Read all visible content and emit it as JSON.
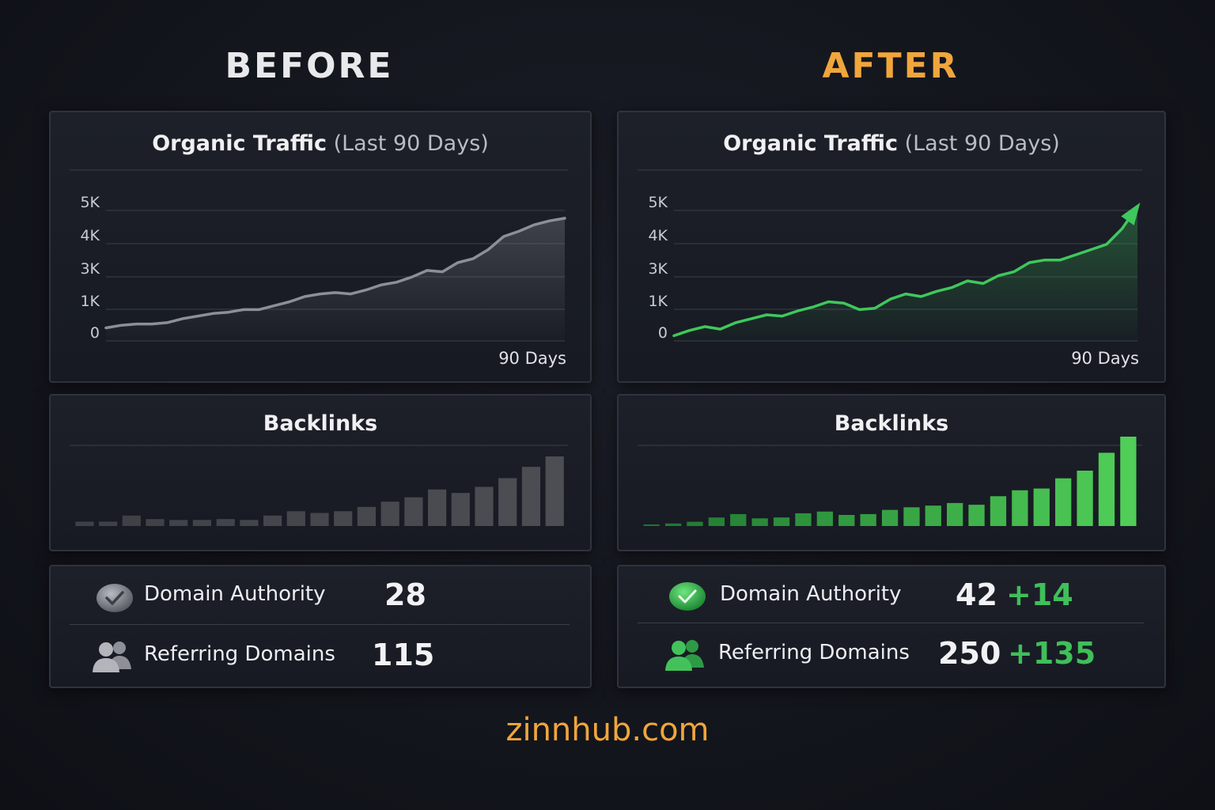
{
  "headings": {
    "before": "BEFORE",
    "after": "AFTER"
  },
  "footer": "zinnhub.com",
  "colors": {
    "before_line": "#8d8f96",
    "after_line": "#3fc85c",
    "accent": "#f0a63c",
    "delta": "#3fbf5a"
  },
  "before": {
    "traffic_title": "Organic Traffic",
    "traffic_sub": "(Last 90 Days)",
    "x_label": "90 Days",
    "backlinks_title": "Backlinks",
    "stats": {
      "da_label": "Domain Authority",
      "da_value": "28",
      "rd_label": "Referring Domains",
      "rd_value": "115"
    },
    "icons": {
      "da": "check-circle-icon",
      "rd": "users-icon"
    }
  },
  "after": {
    "traffic_title": "Organic Traffic",
    "traffic_sub": "(Last 90 Days)",
    "x_label": "90 Days",
    "backlinks_title": "Backlinks",
    "stats": {
      "da_label": "Domain Authority",
      "da_value": "42",
      "da_delta": "+14",
      "rd_label": "Referring Domains",
      "rd_value": "250",
      "rd_delta": "+135"
    },
    "icons": {
      "da": "check-circle-icon",
      "rd": "users-icon"
    }
  },
  "chart_data": [
    {
      "type": "line",
      "panel": "before",
      "title": "Organic Traffic (Last 90 Days)",
      "xlabel": "90 Days",
      "y_ticks": [
        "0",
        "1K",
        "3K",
        "4K",
        "5K"
      ],
      "ylim": [
        0,
        5000
      ],
      "grid": true,
      "x": [
        0,
        3,
        6,
        9,
        12,
        15,
        18,
        21,
        24,
        27,
        30,
        33,
        36,
        39,
        42,
        45,
        48,
        51,
        54,
        57,
        60,
        63,
        66,
        69,
        72,
        75,
        78,
        81,
        84,
        87,
        90
      ],
      "values": [
        500,
        600,
        650,
        650,
        700,
        850,
        950,
        1050,
        1100,
        1200,
        1200,
        1350,
        1500,
        1700,
        1800,
        1850,
        1800,
        1950,
        2150,
        2250,
        2450,
        2700,
        2650,
        3000,
        3150,
        3500,
        4000,
        4200,
        4450,
        4600,
        4700
      ]
    },
    {
      "type": "line",
      "panel": "after",
      "title": "Organic Traffic (Last 90 Days)",
      "xlabel": "90 Days",
      "y_ticks": [
        "0",
        "1K",
        "3K",
        "4K",
        "5K"
      ],
      "ylim": [
        0,
        5000
      ],
      "grid": true,
      "x": [
        0,
        3,
        6,
        9,
        12,
        15,
        18,
        21,
        24,
        27,
        30,
        33,
        36,
        39,
        42,
        45,
        48,
        51,
        54,
        57,
        60,
        63,
        66,
        69,
        72,
        75,
        78,
        81,
        84,
        87,
        90
      ],
      "values": [
        200,
        400,
        550,
        450,
        700,
        850,
        1000,
        950,
        1150,
        1300,
        1500,
        1450,
        1200,
        1250,
        1600,
        1800,
        1700,
        1900,
        2050,
        2300,
        2200,
        2500,
        2650,
        3000,
        3100,
        3100,
        3300,
        3500,
        3700,
        4300,
        5150
      ]
    },
    {
      "type": "bar",
      "panel": "before",
      "title": "Backlinks",
      "values": [
        5,
        5,
        12,
        8,
        7,
        7,
        8,
        7,
        12,
        17,
        15,
        17,
        22,
        28,
        33,
        42,
        38,
        45,
        55,
        68,
        80
      ]
    },
    {
      "type": "bar",
      "panel": "after",
      "title": "Backlinks",
      "values": [
        1,
        3,
        5,
        10,
        14,
        9,
        10,
        15,
        17,
        13,
        14,
        19,
        22,
        24,
        27,
        25,
        35,
        42,
        44,
        56,
        65,
        86,
        105
      ]
    }
  ]
}
